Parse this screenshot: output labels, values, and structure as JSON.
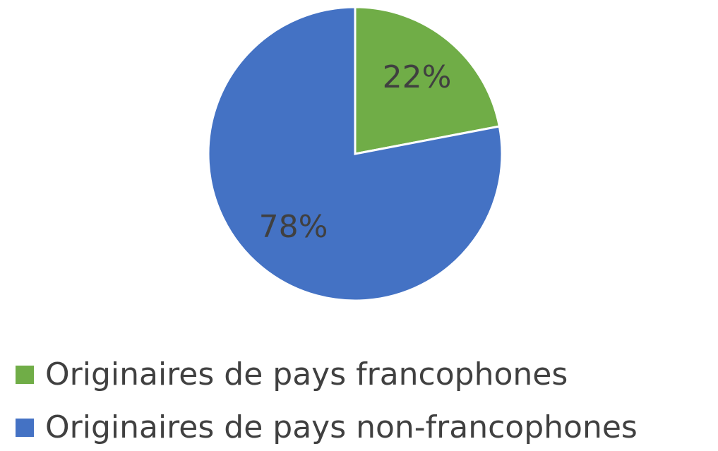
{
  "chart_data": {
    "type": "pie",
    "categories": [
      "Originaires de pays francophones",
      "Originaires de pays non-francophones"
    ],
    "values": [
      22,
      78
    ],
    "value_labels": [
      "22%",
      "78%"
    ],
    "colors": [
      "#70ad47",
      "#4472c4"
    ],
    "legend": "bottom"
  }
}
